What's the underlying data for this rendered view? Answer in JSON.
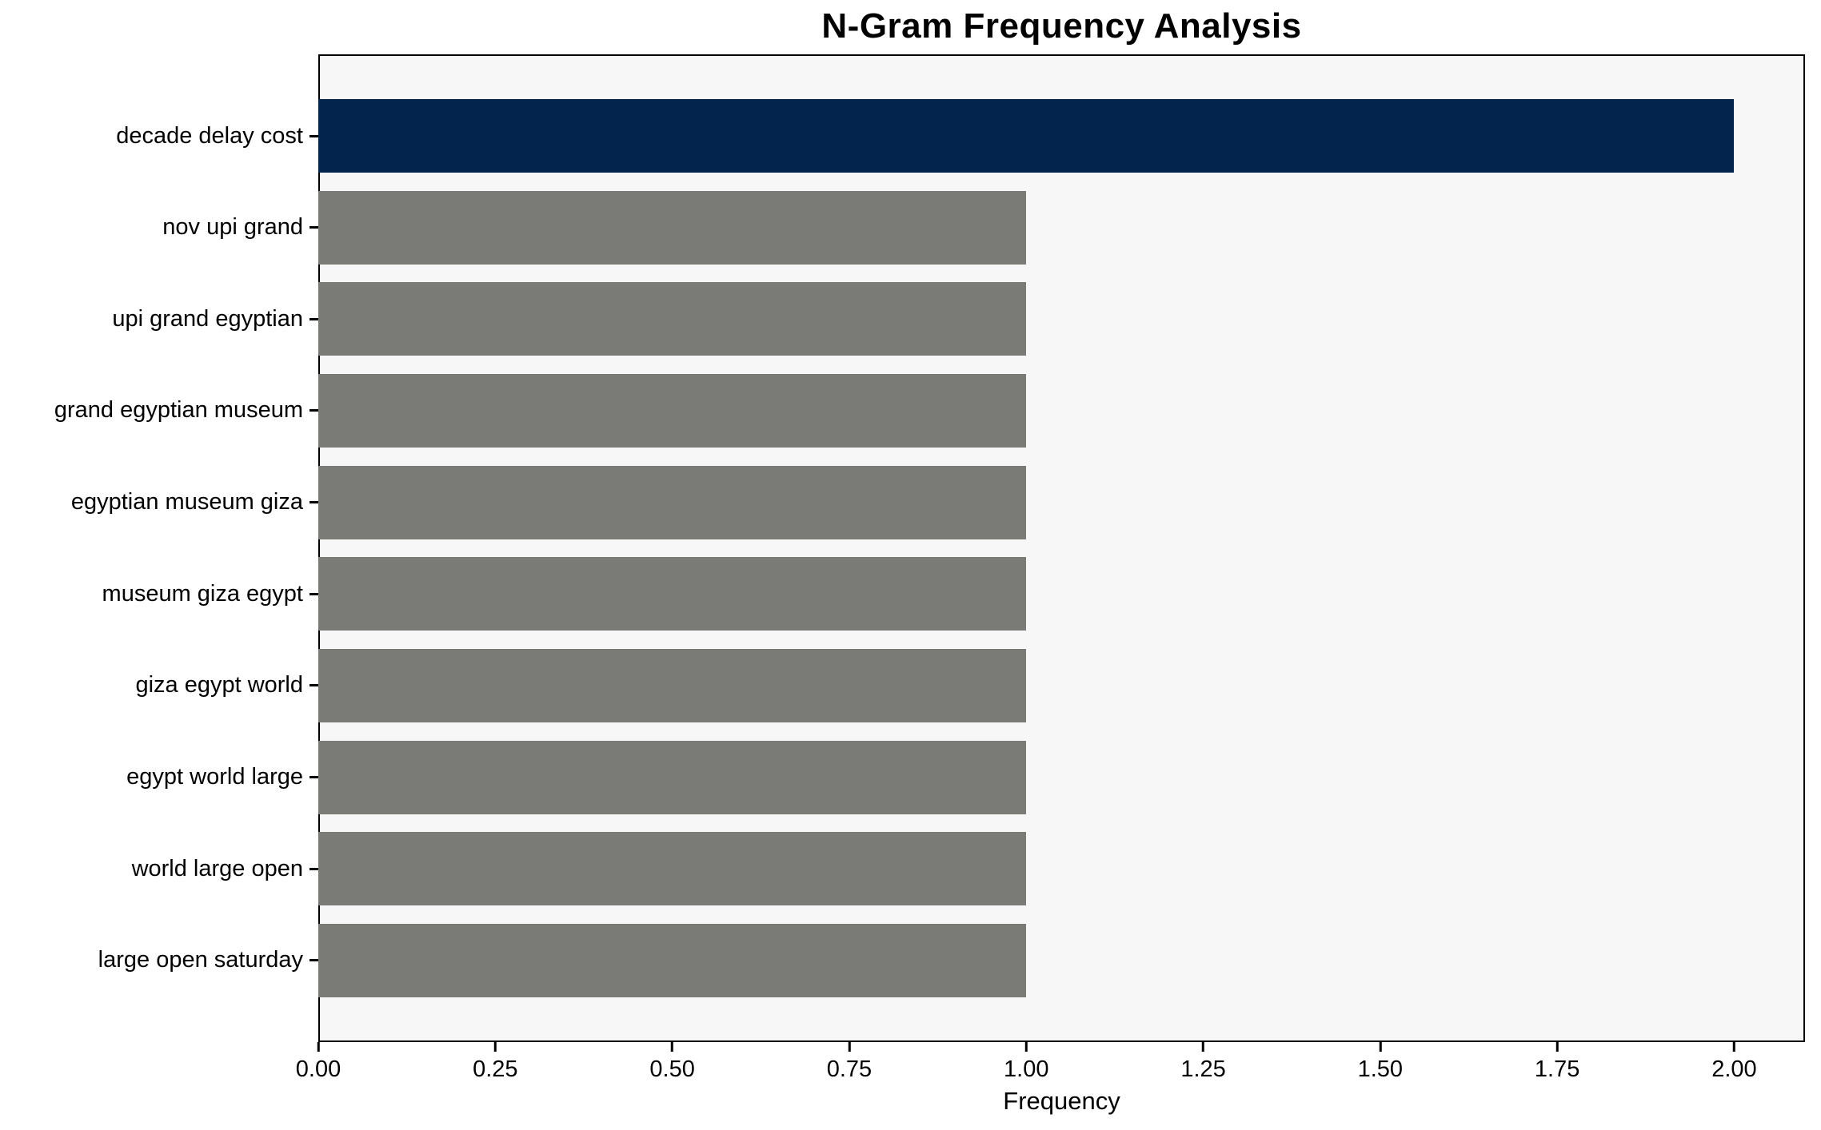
{
  "chart_data": {
    "type": "bar",
    "orientation": "horizontal",
    "title": "N-Gram Frequency Analysis",
    "xlabel": "Frequency",
    "ylabel": "",
    "categories": [
      "decade delay cost",
      "nov upi grand",
      "upi grand egyptian",
      "grand egyptian museum",
      "egyptian museum giza",
      "museum giza egypt",
      "giza egypt world",
      "egypt world large",
      "world large open",
      "large open saturday"
    ],
    "values": [
      2,
      1,
      1,
      1,
      1,
      1,
      1,
      1,
      1,
      1
    ],
    "colors": [
      "#02244d",
      "#7a7a77",
      "#7a7a77",
      "#7a7a77",
      "#7a7a77",
      "#7a7a77",
      "#7a7a77",
      "#7a7a77",
      "#7a7a77",
      "#7a7a77"
    ],
    "highlight_color": "#02244d",
    "default_bar_color": "#7a7a77",
    "plot_background_color": "#f7f7f7",
    "frame_color": "#000000",
    "xlim": [
      0,
      2.1
    ],
    "xticks": [
      0.0,
      0.25,
      0.5,
      0.75,
      1.0,
      1.25,
      1.5,
      1.75,
      2.0
    ],
    "xtick_labels": [
      "0.00",
      "0.25",
      "0.50",
      "0.75",
      "1.00",
      "1.25",
      "1.50",
      "1.75",
      "2.00"
    ],
    "grid": false,
    "legend": false
  }
}
